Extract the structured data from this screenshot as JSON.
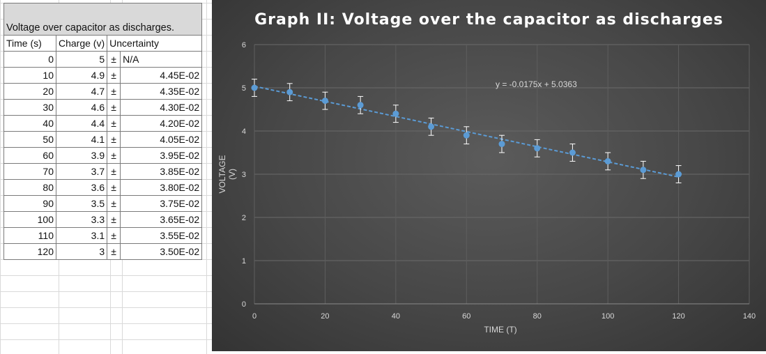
{
  "table": {
    "title": "Voltage over capacitor as discharges.",
    "headers": [
      "Time (s)",
      "Charge (v)",
      "Uncertainty"
    ],
    "pm_symbol": "±",
    "rows": [
      {
        "time": "0",
        "charge": "5",
        "unc": "N/A"
      },
      {
        "time": "10",
        "charge": "4.9",
        "unc": "4.45E-02"
      },
      {
        "time": "20",
        "charge": "4.7",
        "unc": "4.35E-02"
      },
      {
        "time": "30",
        "charge": "4.6",
        "unc": "4.30E-02"
      },
      {
        "time": "40",
        "charge": "4.4",
        "unc": "4.20E-02"
      },
      {
        "time": "50",
        "charge": "4.1",
        "unc": "4.05E-02"
      },
      {
        "time": "60",
        "charge": "3.9",
        "unc": "3.95E-02"
      },
      {
        "time": "70",
        "charge": "3.7",
        "unc": "3.85E-02"
      },
      {
        "time": "80",
        "charge": "3.6",
        "unc": "3.80E-02"
      },
      {
        "time": "90",
        "charge": "3.5",
        "unc": "3.75E-02"
      },
      {
        "time": "100",
        "charge": "3.3",
        "unc": "3.65E-02"
      },
      {
        "time": "110",
        "charge": "3.1",
        "unc": "3.55E-02"
      },
      {
        "time": "120",
        "charge": "3",
        "unc": "3.50E-02"
      }
    ]
  },
  "chart_data": {
    "type": "scatter",
    "title": "Graph II: Voltage over the capacitor as discharges",
    "xlabel": "TIME (T)",
    "ylabel": "VOLTAGE (V)",
    "xlim": [
      0,
      140
    ],
    "ylim": [
      0,
      6
    ],
    "xticks": [
      0,
      20,
      40,
      60,
      80,
      100,
      120,
      140
    ],
    "yticks": [
      0,
      1,
      2,
      3,
      4,
      5,
      6
    ],
    "grid": true,
    "legend": "none",
    "x": [
      0,
      10,
      20,
      30,
      40,
      50,
      60,
      70,
      80,
      90,
      100,
      110,
      120
    ],
    "y": [
      5,
      4.9,
      4.7,
      4.6,
      4.4,
      4.1,
      3.9,
      3.7,
      3.6,
      3.5,
      3.3,
      3.1,
      3
    ],
    "error_bar": 0.2,
    "trendline": {
      "slope": -0.0175,
      "intercept": 5.0363,
      "equation": "y = -0.0175x + 5.0363"
    },
    "colors": {
      "point": "#5b9bd5",
      "trend": "#5b9bd5",
      "error": "#ffffff",
      "background": "#474747"
    }
  }
}
